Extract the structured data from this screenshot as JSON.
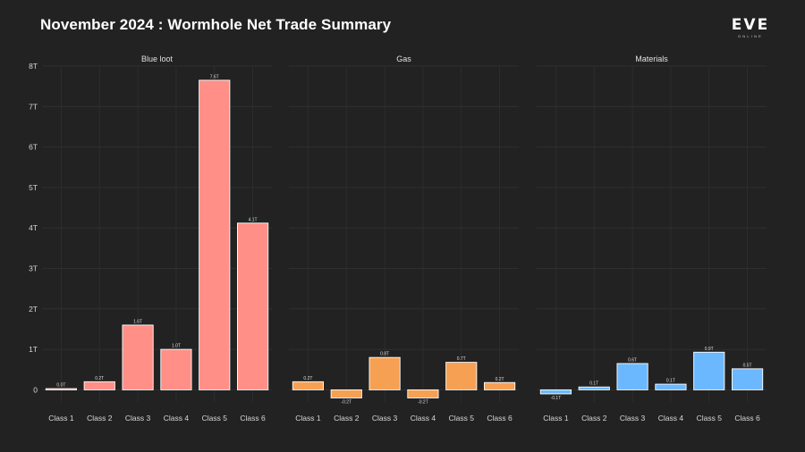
{
  "title": "November 2024 : Wormhole Net Trade Summary",
  "logo": {
    "main": "EVE",
    "sub": "ONLINE"
  },
  "chart_data": {
    "type": "bar",
    "title": "November 2024 : Wormhole Net Trade Summary",
    "xlabel": "",
    "ylabel": "",
    "ylim": [
      -0.3,
      8
    ],
    "yticks": [
      {
        "value": 0,
        "label": "0"
      },
      {
        "value": 1,
        "label": "1T"
      },
      {
        "value": 2,
        "label": "2T"
      },
      {
        "value": 3,
        "label": "3T"
      },
      {
        "value": 4,
        "label": "4T"
      },
      {
        "value": 5,
        "label": "5T"
      },
      {
        "value": 6,
        "label": "6T"
      },
      {
        "value": 7,
        "label": "7T"
      },
      {
        "value": 8,
        "label": "8T"
      }
    ],
    "grid": true,
    "categories": [
      "Class 1",
      "Class 2",
      "Class 3",
      "Class 4",
      "Class 5",
      "Class 6"
    ],
    "facets": [
      {
        "name": "Blue loot",
        "color": "#ff8f87",
        "values": [
          0.03,
          0.2,
          1.6,
          1.0,
          7.65,
          4.12
        ],
        "labels": [
          "0.0T",
          "0.2T",
          "1.6T",
          "1.0T",
          "7.6T",
          "4.1T"
        ]
      },
      {
        "name": "Gas",
        "color": "#f6a054",
        "values": [
          0.2,
          -0.2,
          0.8,
          -0.2,
          0.68,
          0.18
        ],
        "labels": [
          "0.2T",
          "-0.2T",
          "0.8T",
          "-0.2T",
          "0.7T",
          "0.2T"
        ]
      },
      {
        "name": "Materials",
        "color": "#6cb8ff",
        "values": [
          -0.1,
          0.07,
          0.65,
          0.14,
          0.93,
          0.52
        ],
        "labels": [
          "-0.1T",
          "0.1T",
          "0.6T",
          "0.1T",
          "0.9T",
          "0.5T"
        ]
      }
    ]
  }
}
